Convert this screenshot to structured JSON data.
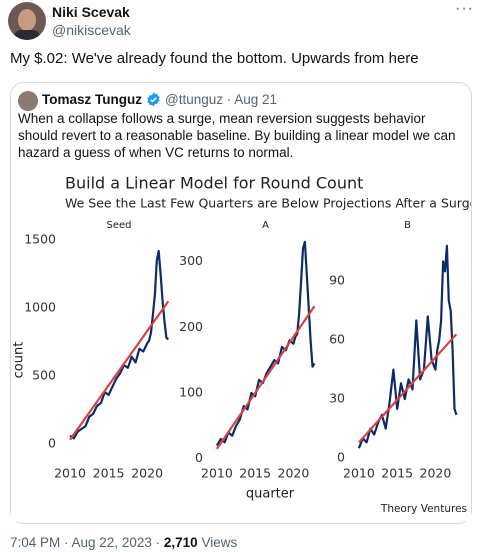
{
  "author": {
    "name": "Niki Scevak",
    "handle": "@nikiscevak"
  },
  "tweet": {
    "text": "My $.02: We've already found the bottom. Upwards from here"
  },
  "quote": {
    "author": "Tomasz Tunguz",
    "handle_date": "@ttunguz · Aug 21",
    "text": "When a collapse follows a surge, mean reversion suggests behavior should revert to a reasonable baseline. By building a linear model we can hazard a guess of when VC returns to normal."
  },
  "figure": {
    "title": "Build a Linear Model for Round Count",
    "subtitle": "We See the Last Few Quarters are Below Projections After a Surge",
    "xlabel": "quarter",
    "ylabel": "count",
    "credit": "Theory Ventures"
  },
  "chart_data": [
    {
      "type": "line",
      "title": "Seed",
      "x": [
        2010,
        2010.5,
        2011,
        2011.5,
        2012,
        2012.5,
        2013,
        2013.5,
        2014,
        2014.5,
        2015,
        2015.5,
        2016,
        2016.5,
        2017,
        2017.5,
        2018,
        2018.5,
        2019,
        2019.5,
        2020,
        2020.25,
        2020.5,
        2020.75,
        2021,
        2021.25,
        2021.5,
        2021.75,
        2022,
        2022.25,
        2022.5,
        2022.75
      ],
      "series": [
        {
          "color": "#0d2a6b",
          "values": [
            60,
            40,
            90,
            110,
            130,
            200,
            220,
            280,
            300,
            380,
            360,
            420,
            480,
            520,
            580,
            560,
            640,
            600,
            700,
            680,
            740,
            760,
            820,
            950,
            1100,
            1350,
            1420,
            1250,
            1050,
            900,
            780,
            770
          ]
        },
        {
          "color": "#d9423f",
          "x": [
            2010,
            2022.75
          ],
          "values": [
            30,
            1050
          ]
        }
      ],
      "xlim": [
        2008.7,
        2024
      ],
      "ylim": [
        -134,
        1560
      ],
      "xticks": [
        2010,
        2015,
        2020
      ],
      "yticks": [
        0,
        500,
        1000,
        1500
      ]
    },
    {
      "type": "line",
      "title": "A",
      "x": [
        2010,
        2010.5,
        2011,
        2011.5,
        2012,
        2012.5,
        2013,
        2013.5,
        2014,
        2014.5,
        2015,
        2015.5,
        2016,
        2016.5,
        2017,
        2017.5,
        2018,
        2018.5,
        2019,
        2019.5,
        2020,
        2020.25,
        2020.5,
        2020.75,
        2021,
        2021.25,
        2021.5,
        2021.75,
        2022,
        2022.25,
        2022.5,
        2022.75
      ],
      "series": [
        {
          "color": "#0d2a6b",
          "values": [
            20,
            30,
            25,
            40,
            35,
            50,
            60,
            80,
            75,
            100,
            95,
            120,
            115,
            130,
            140,
            150,
            145,
            170,
            165,
            180,
            175,
            185,
            190,
            220,
            270,
            320,
            330,
            280,
            230,
            180,
            140,
            145
          ]
        },
        {
          "color": "#d9423f",
          "x": [
            2010,
            2022.75
          ],
          "values": [
            15,
            232
          ]
        }
      ],
      "xlim": [
        2008.7,
        2024
      ],
      "ylim": [
        -5,
        345
      ],
      "xticks": [
        2010,
        2015,
        2020
      ],
      "yticks": [
        0,
        100,
        200,
        300
      ]
    },
    {
      "type": "line",
      "title": "B",
      "x": [
        2010,
        2010.5,
        2011,
        2011.5,
        2012,
        2012.5,
        2013,
        2013.5,
        2014,
        2014.5,
        2015,
        2015.5,
        2016,
        2016.5,
        2017,
        2017.5,
        2018,
        2018.5,
        2019,
        2019.5,
        2020,
        2020.25,
        2020.5,
        2020.75,
        2021,
        2021.25,
        2021.5,
        2021.75,
        2022,
        2022.25,
        2022.5,
        2022.75
      ],
      "series": [
        {
          "color": "#0d2a6b",
          "values": [
            5,
            10,
            8,
            15,
            12,
            18,
            22,
            15,
            28,
            45,
            25,
            38,
            30,
            40,
            35,
            70,
            40,
            45,
            72,
            50,
            45,
            55,
            60,
            70,
            100,
            95,
            108,
            80,
            75,
            55,
            25,
            22
          ]
        },
        {
          "color": "#d9423f",
          "x": [
            2010,
            2022.75
          ],
          "values": [
            8,
            63
          ]
        }
      ],
      "xlim": [
        2008.7,
        2024
      ],
      "ylim": [
        -2,
        115
      ],
      "xticks": [
        2010,
        2015,
        2020
      ],
      "yticks": [
        0,
        30,
        60,
        90
      ]
    }
  ],
  "footer": {
    "timestamp": "7:04 PM · Aug 22, 2023 ·",
    "views": "2,710",
    "views_label": "Views"
  }
}
